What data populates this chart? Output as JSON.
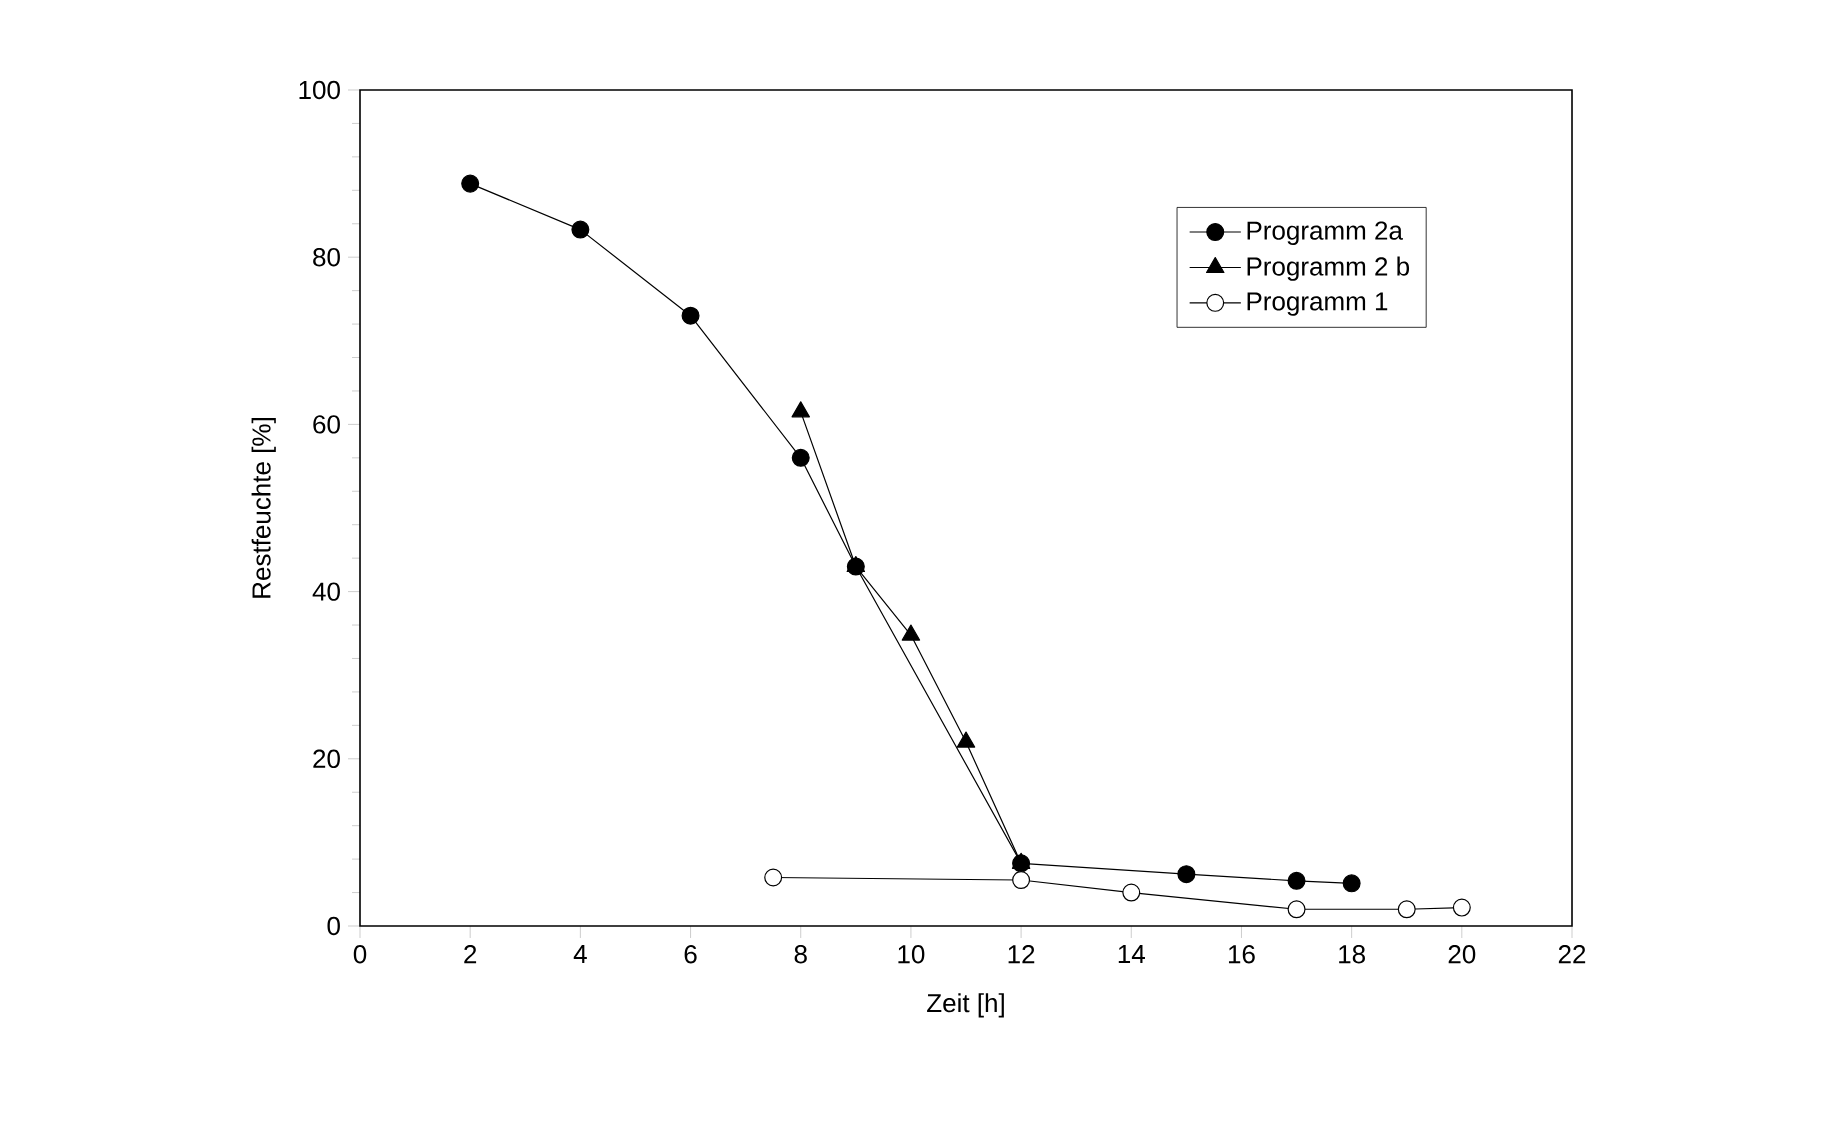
{
  "chart_data": {
    "type": "line",
    "xlabel": "Zeit [h]",
    "ylabel": "Restfeuchte [%]",
    "xlim": [
      0,
      22
    ],
    "xticks": [
      0,
      2,
      4,
      6,
      8,
      10,
      12,
      14,
      16,
      18,
      20,
      22
    ],
    "ylim": [
      0,
      100
    ],
    "yticks": [
      0,
      20,
      40,
      60,
      80,
      100
    ],
    "grid": false,
    "legend": "top right",
    "series": [
      {
        "name": "Programm 2a",
        "color": "#000000",
        "marker": "circle",
        "x": [
          2,
          4,
          6,
          8,
          9,
          12,
          15,
          17,
          18
        ],
        "values": [
          88.8,
          83.3,
          73,
          56,
          43,
          7.5,
          6.2,
          5.4,
          5.1
        ]
      },
      {
        "name": "Programm 2 b",
        "color": "#000000",
        "marker": "triangle",
        "x": [
          8,
          9,
          10,
          11,
          12
        ],
        "values": [
          61.5,
          43,
          34.8,
          22,
          7.5
        ]
      },
      {
        "name": "Programm 1",
        "color": "#ffffff",
        "marker": "circle",
        "x": [
          7.5,
          12,
          14,
          17,
          19,
          20
        ],
        "values": [
          5.8,
          5.5,
          4,
          2,
          2,
          2.2
        ]
      }
    ]
  }
}
